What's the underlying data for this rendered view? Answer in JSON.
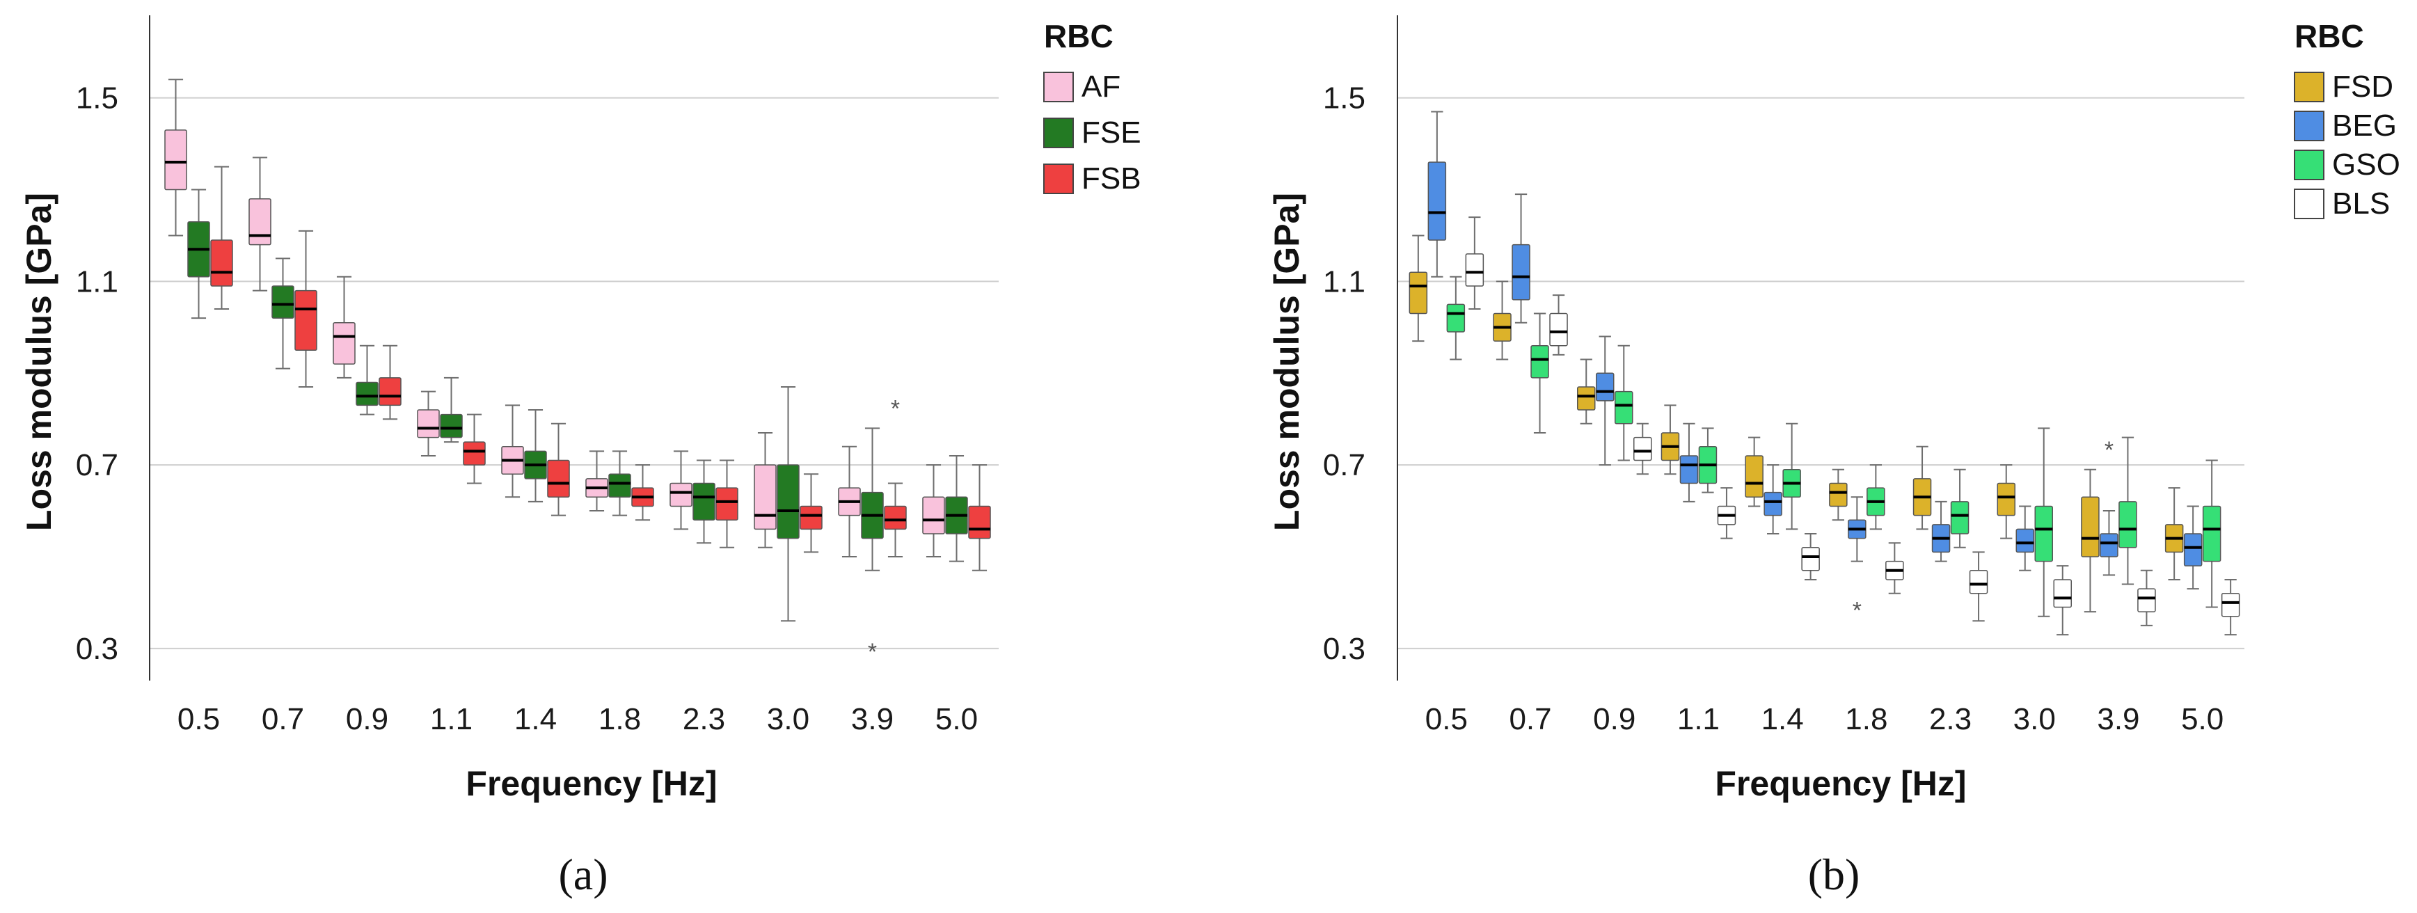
{
  "chart_data": [
    {
      "type": "box",
      "panel_label": "(a)",
      "xlabel": "Frequency  [Hz]",
      "ylabel": "Loss modulus [GPa]",
      "ylim": [
        0.23,
        1.68
      ],
      "yticks": [
        "0.3",
        "0.7",
        "1.1",
        "1.5"
      ],
      "grid": true,
      "categories": [
        "0.5",
        "0.7",
        "0.9",
        "1.1",
        "1.4",
        "1.8",
        "2.3",
        "3.0",
        "3.9",
        "5.0"
      ],
      "legend": {
        "title": "RBC",
        "position": "top-right"
      },
      "series": [
        {
          "name": "AF",
          "color": "#f9c2dc",
          "median_color": "#000000",
          "boxes": [
            {
              "min": 1.2,
              "q1": 1.3,
              "median": 1.36,
              "q3": 1.43,
              "max": 1.54
            },
            {
              "min": 1.08,
              "q1": 1.18,
              "median": 1.2,
              "q3": 1.28,
              "max": 1.37
            },
            {
              "min": 0.89,
              "q1": 0.92,
              "median": 0.98,
              "q3": 1.01,
              "max": 1.11
            },
            {
              "min": 0.72,
              "q1": 0.76,
              "median": 0.78,
              "q3": 0.82,
              "max": 0.86
            },
            {
              "min": 0.63,
              "q1": 0.68,
              "median": 0.71,
              "q3": 0.74,
              "max": 0.83
            },
            {
              "min": 0.6,
              "q1": 0.63,
              "median": 0.65,
              "q3": 0.67,
              "max": 0.73
            },
            {
              "min": 0.56,
              "q1": 0.61,
              "median": 0.64,
              "q3": 0.66,
              "max": 0.73
            },
            {
              "min": 0.52,
              "q1": 0.56,
              "median": 0.59,
              "q3": 0.7,
              "max": 0.77
            },
            {
              "min": 0.5,
              "q1": 0.59,
              "median": 0.62,
              "q3": 0.65,
              "max": 0.74
            },
            {
              "min": 0.5,
              "q1": 0.55,
              "median": 0.58,
              "q3": 0.63,
              "max": 0.7
            }
          ]
        },
        {
          "name": "FSE",
          "color": "#237a23",
          "median_color": "#000000",
          "boxes": [
            {
              "min": 1.02,
              "q1": 1.11,
              "median": 1.17,
              "q3": 1.23,
              "max": 1.3
            },
            {
              "min": 0.91,
              "q1": 1.02,
              "median": 1.05,
              "q3": 1.09,
              "max": 1.15
            },
            {
              "min": 0.81,
              "q1": 0.83,
              "median": 0.85,
              "q3": 0.88,
              "max": 0.96
            },
            {
              "min": 0.75,
              "q1": 0.76,
              "median": 0.78,
              "q3": 0.81,
              "max": 0.89
            },
            {
              "min": 0.62,
              "q1": 0.67,
              "median": 0.7,
              "q3": 0.73,
              "max": 0.82
            },
            {
              "min": 0.59,
              "q1": 0.63,
              "median": 0.66,
              "q3": 0.68,
              "max": 0.73
            },
            {
              "min": 0.53,
              "q1": 0.58,
              "median": 0.63,
              "q3": 0.66,
              "max": 0.71
            },
            {
              "min": 0.36,
              "q1": 0.54,
              "median": 0.6,
              "q3": 0.7,
              "max": 0.87
            },
            {
              "min": 0.47,
              "q1": 0.54,
              "median": 0.59,
              "q3": 0.64,
              "max": 0.78
            },
            {
              "min": 0.49,
              "q1": 0.55,
              "median": 0.59,
              "q3": 0.63,
              "max": 0.72
            }
          ]
        },
        {
          "name": "FSB",
          "color": "#ee4040",
          "median_color": "#000000",
          "boxes": [
            {
              "min": 1.04,
              "q1": 1.09,
              "median": 1.12,
              "q3": 1.19,
              "max": 1.35
            },
            {
              "min": 0.87,
              "q1": 0.95,
              "median": 1.04,
              "q3": 1.08,
              "max": 1.21
            },
            {
              "min": 0.8,
              "q1": 0.83,
              "median": 0.85,
              "q3": 0.89,
              "max": 0.96
            },
            {
              "min": 0.66,
              "q1": 0.7,
              "median": 0.73,
              "q3": 0.75,
              "max": 0.81
            },
            {
              "min": 0.59,
              "q1": 0.63,
              "median": 0.66,
              "q3": 0.71,
              "max": 0.79
            },
            {
              "min": 0.58,
              "q1": 0.61,
              "median": 0.63,
              "q3": 0.65,
              "max": 0.7
            },
            {
              "min": 0.52,
              "q1": 0.58,
              "median": 0.62,
              "q3": 0.65,
              "max": 0.71
            },
            {
              "min": 0.51,
              "q1": 0.56,
              "median": 0.59,
              "q3": 0.61,
              "max": 0.68
            },
            {
              "min": 0.5,
              "q1": 0.56,
              "median": 0.58,
              "q3": 0.61,
              "max": 0.66
            },
            {
              "min": 0.47,
              "q1": 0.54,
              "median": 0.56,
              "q3": 0.61,
              "max": 0.7
            }
          ]
        }
      ],
      "outliers": [
        {
          "series": "FSE",
          "category": "3.9",
          "value": 0.3
        },
        {
          "series": "FSB",
          "category": "3.9",
          "value": 0.83
        }
      ]
    },
    {
      "type": "box",
      "panel_label": "(b)",
      "xlabel": "Frequency  [Hz]",
      "ylabel": "Loss modulus [GPa]",
      "ylim": [
        0.23,
        1.68
      ],
      "yticks": [
        "0.3",
        "0.7",
        "1.1",
        "1.5"
      ],
      "grid": true,
      "categories": [
        "0.5",
        "0.7",
        "0.9",
        "1.1",
        "1.4",
        "1.8",
        "2.3",
        "3.0",
        "3.9",
        "5.0"
      ],
      "legend": {
        "title": "RBC",
        "position": "top-right"
      },
      "series": [
        {
          "name": "FSD",
          "color": "#dcb22a",
          "median_color": "#000000",
          "boxes": [
            {
              "min": 0.97,
              "q1": 1.03,
              "median": 1.09,
              "q3": 1.12,
              "max": 1.2
            },
            {
              "min": 0.93,
              "q1": 0.97,
              "median": 1.0,
              "q3": 1.03,
              "max": 1.1
            },
            {
              "min": 0.79,
              "q1": 0.82,
              "median": 0.85,
              "q3": 0.87,
              "max": 0.93
            },
            {
              "min": 0.68,
              "q1": 0.71,
              "median": 0.74,
              "q3": 0.77,
              "max": 0.83
            },
            {
              "min": 0.61,
              "q1": 0.63,
              "median": 0.66,
              "q3": 0.72,
              "max": 0.76
            },
            {
              "min": 0.58,
              "q1": 0.61,
              "median": 0.64,
              "q3": 0.66,
              "max": 0.69
            },
            {
              "min": 0.56,
              "q1": 0.59,
              "median": 0.63,
              "q3": 0.67,
              "max": 0.74
            },
            {
              "min": 0.54,
              "q1": 0.59,
              "median": 0.63,
              "q3": 0.66,
              "max": 0.7
            },
            {
              "min": 0.38,
              "q1": 0.5,
              "median": 0.54,
              "q3": 0.63,
              "max": 0.69
            },
            {
              "min": 0.45,
              "q1": 0.51,
              "median": 0.54,
              "q3": 0.57,
              "max": 0.65
            }
          ]
        },
        {
          "name": "BEG",
          "color": "#4f8de3",
          "median_color": "#000000",
          "boxes": [
            {
              "min": 1.11,
              "q1": 1.19,
              "median": 1.25,
              "q3": 1.36,
              "max": 1.47
            },
            {
              "min": 1.01,
              "q1": 1.06,
              "median": 1.11,
              "q3": 1.18,
              "max": 1.29
            },
            {
              "min": 0.7,
              "q1": 0.84,
              "median": 0.86,
              "q3": 0.9,
              "max": 0.98
            },
            {
              "min": 0.62,
              "q1": 0.66,
              "median": 0.7,
              "q3": 0.72,
              "max": 0.79
            },
            {
              "min": 0.55,
              "q1": 0.59,
              "median": 0.62,
              "q3": 0.64,
              "max": 0.7
            },
            {
              "min": 0.49,
              "q1": 0.54,
              "median": 0.56,
              "q3": 0.58,
              "max": 0.63
            },
            {
              "min": 0.49,
              "q1": 0.51,
              "median": 0.54,
              "q3": 0.57,
              "max": 0.62
            },
            {
              "min": 0.47,
              "q1": 0.51,
              "median": 0.53,
              "q3": 0.56,
              "max": 0.61
            },
            {
              "min": 0.46,
              "q1": 0.5,
              "median": 0.53,
              "q3": 0.55,
              "max": 0.6
            },
            {
              "min": 0.43,
              "q1": 0.48,
              "median": 0.52,
              "q3": 0.55,
              "max": 0.61
            }
          ]
        },
        {
          "name": "GSO",
          "color": "#36df76",
          "median_color": "#000000",
          "boxes": [
            {
              "min": 0.93,
              "q1": 0.99,
              "median": 1.03,
              "q3": 1.05,
              "max": 1.11
            },
            {
              "min": 0.77,
              "q1": 0.89,
              "median": 0.93,
              "q3": 0.96,
              "max": 1.03
            },
            {
              "min": 0.71,
              "q1": 0.79,
              "median": 0.83,
              "q3": 0.86,
              "max": 0.96
            },
            {
              "min": 0.64,
              "q1": 0.66,
              "median": 0.7,
              "q3": 0.74,
              "max": 0.78
            },
            {
              "min": 0.56,
              "q1": 0.63,
              "median": 0.66,
              "q3": 0.69,
              "max": 0.79
            },
            {
              "min": 0.56,
              "q1": 0.59,
              "median": 0.62,
              "q3": 0.65,
              "max": 0.7
            },
            {
              "min": 0.52,
              "q1": 0.55,
              "median": 0.59,
              "q3": 0.62,
              "max": 0.69
            },
            {
              "min": 0.37,
              "q1": 0.49,
              "median": 0.56,
              "q3": 0.61,
              "max": 0.78
            },
            {
              "min": 0.44,
              "q1": 0.52,
              "median": 0.56,
              "q3": 0.62,
              "max": 0.76
            },
            {
              "min": 0.39,
              "q1": 0.49,
              "median": 0.56,
              "q3": 0.61,
              "max": 0.71
            }
          ]
        },
        {
          "name": "BLS",
          "color": "#ffffff",
          "median_color": "#000000",
          "boxes": [
            {
              "min": 1.04,
              "q1": 1.09,
              "median": 1.12,
              "q3": 1.16,
              "max": 1.24
            },
            {
              "min": 0.94,
              "q1": 0.96,
              "median": 0.99,
              "q3": 1.03,
              "max": 1.07
            },
            {
              "min": 0.68,
              "q1": 0.71,
              "median": 0.73,
              "q3": 0.76,
              "max": 0.79
            },
            {
              "min": 0.54,
              "q1": 0.57,
              "median": 0.59,
              "q3": 0.61,
              "max": 0.65
            },
            {
              "min": 0.45,
              "q1": 0.47,
              "median": 0.5,
              "q3": 0.52,
              "max": 0.55
            },
            {
              "min": 0.42,
              "q1": 0.45,
              "median": 0.47,
              "q3": 0.49,
              "max": 0.53
            },
            {
              "min": 0.36,
              "q1": 0.42,
              "median": 0.44,
              "q3": 0.47,
              "max": 0.51
            },
            {
              "min": 0.33,
              "q1": 0.39,
              "median": 0.41,
              "q3": 0.45,
              "max": 0.48
            },
            {
              "min": 0.35,
              "q1": 0.38,
              "median": 0.41,
              "q3": 0.43,
              "max": 0.47
            },
            {
              "min": 0.33,
              "q1": 0.37,
              "median": 0.4,
              "q3": 0.42,
              "max": 0.45
            }
          ]
        }
      ],
      "outliers": [
        {
          "series": "BEG",
          "category": "1.8",
          "value": 0.39
        },
        {
          "series": "BEG",
          "category": "3.9",
          "value": 0.74
        }
      ]
    }
  ]
}
